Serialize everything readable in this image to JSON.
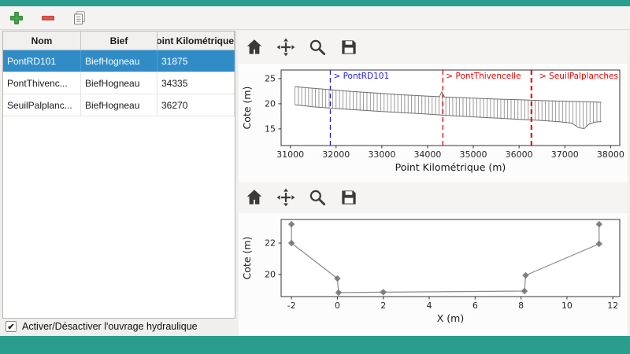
{
  "window": {
    "frame_color": "#2a9d8f",
    "content_bg": "#f0efee"
  },
  "main_toolbar": {
    "icons": [
      "add-icon",
      "remove-icon",
      "copy-icon"
    ]
  },
  "structures_table": {
    "columns": [
      "Nom",
      "Bief",
      "Point Kilométrique"
    ],
    "rows": [
      {
        "nom": "PontRD101",
        "bief": "BiefHogneau",
        "pk": "31875",
        "selected": true
      },
      {
        "nom": "PontThivenc...",
        "bief": "BiefHogneau",
        "pk": "34335",
        "selected": false
      },
      {
        "nom": "SeuilPalplanc...",
        "bief": "BiefHogneau",
        "pk": "36270",
        "selected": false
      }
    ],
    "selection_color": "#308cc6"
  },
  "activate_checkbox": {
    "label": "Activer/Désactiver l'ouvrage hydraulique",
    "checked": true
  },
  "plot_toolbar": {
    "icons": [
      "home-icon",
      "pan-icon",
      "zoom-icon",
      "save-icon"
    ]
  },
  "chart_data": [
    {
      "type": "line",
      "title": "",
      "xlabel": "Point Kilométrique (m)",
      "ylabel": "Cote (m)",
      "xlim": [
        30800,
        38200
      ],
      "ylim": [
        11.7,
        26.7
      ],
      "xticks": [
        31000,
        32000,
        33000,
        34000,
        35000,
        36000,
        37000,
        38000
      ],
      "yticks": [
        15,
        20,
        25
      ],
      "grid": false,
      "legend": null,
      "series": [
        {
          "name": "berges-haut",
          "color": "#6e6e6e",
          "width": 1,
          "points": [
            [
              31100,
              23.4
            ],
            [
              31400,
              23.15
            ],
            [
              31800,
              22.85
            ],
            [
              32200,
              22.55
            ],
            [
              32600,
              22.3
            ],
            [
              33000,
              22.05
            ],
            [
              33400,
              21.8
            ],
            [
              33800,
              21.6
            ],
            [
              34150,
              21.45
            ],
            [
              34260,
              21.4
            ],
            [
              34310,
              22.35
            ],
            [
              34370,
              21.35
            ],
            [
              34800,
              21.2
            ],
            [
              35200,
              21.05
            ],
            [
              35600,
              20.9
            ],
            [
              36000,
              20.8
            ],
            [
              36270,
              20.7
            ],
            [
              36600,
              20.6
            ],
            [
              37000,
              20.5
            ],
            [
              37400,
              20.4
            ],
            [
              37800,
              20.3
            ]
          ]
        },
        {
          "name": "fond-lit",
          "color": "#6e6e6e",
          "width": 1,
          "points": [
            [
              31100,
              19.8
            ],
            [
              31500,
              19.4
            ],
            [
              32000,
              19.05
            ],
            [
              32500,
              18.75
            ],
            [
              33000,
              18.45
            ],
            [
              33500,
              18.2
            ],
            [
              34000,
              17.95
            ],
            [
              34400,
              17.7
            ],
            [
              34800,
              17.5
            ],
            [
              35200,
              17.3
            ],
            [
              35600,
              17.1
            ],
            [
              36000,
              16.9
            ],
            [
              36270,
              16.8
            ],
            [
              36600,
              16.6
            ],
            [
              36900,
              16.4
            ],
            [
              37150,
              16.15
            ],
            [
              37300,
              15.25
            ],
            [
              37420,
              15.05
            ],
            [
              37520,
              15.9
            ],
            [
              37650,
              16.35
            ],
            [
              37800,
              16.45
            ]
          ]
        }
      ],
      "section_ticks": {
        "start": 31100,
        "end": 37800,
        "step": 75,
        "color": "#8f8f8f"
      },
      "annotations": [
        {
          "label": "> PontRD101",
          "x": 31875,
          "color": "#2020e0",
          "dashed": true,
          "width": 1.3
        },
        {
          "label": "> PontThivencelle",
          "x": 34335,
          "color": "#e80000",
          "dashed": true,
          "width": 1.3
        },
        {
          "label": "> SeuilPalplanches",
          "x": 36270,
          "color": "#e80000",
          "dashed": true,
          "width": 2.2,
          "anchor": "plot-right"
        }
      ]
    },
    {
      "type": "line",
      "title": "",
      "xlabel": "X (m)",
      "ylabel": "Cote (m)",
      "xlim": [
        -2.45,
        12.3
      ],
      "ylim": [
        18.6,
        23.5
      ],
      "xticks": [
        -2,
        0,
        2,
        4,
        6,
        8,
        10,
        12
      ],
      "yticks": [
        20,
        22
      ],
      "grid": false,
      "legend": null,
      "series": [
        {
          "name": "profil-en-travers",
          "color": "#8a8a8a",
          "width": 1.2,
          "marker": "diamond",
          "marker_color": "#6f6f6f",
          "points": [
            [
              -2,
              23.2
            ],
            [
              -2,
              22.0
            ],
            [
              0,
              19.75
            ],
            [
              0.05,
              18.85
            ],
            [
              2,
              18.88
            ],
            [
              8.15,
              18.95
            ],
            [
              8.2,
              19.95
            ],
            [
              11.4,
              21.95
            ],
            [
              11.4,
              23.2
            ]
          ]
        }
      ]
    }
  ]
}
